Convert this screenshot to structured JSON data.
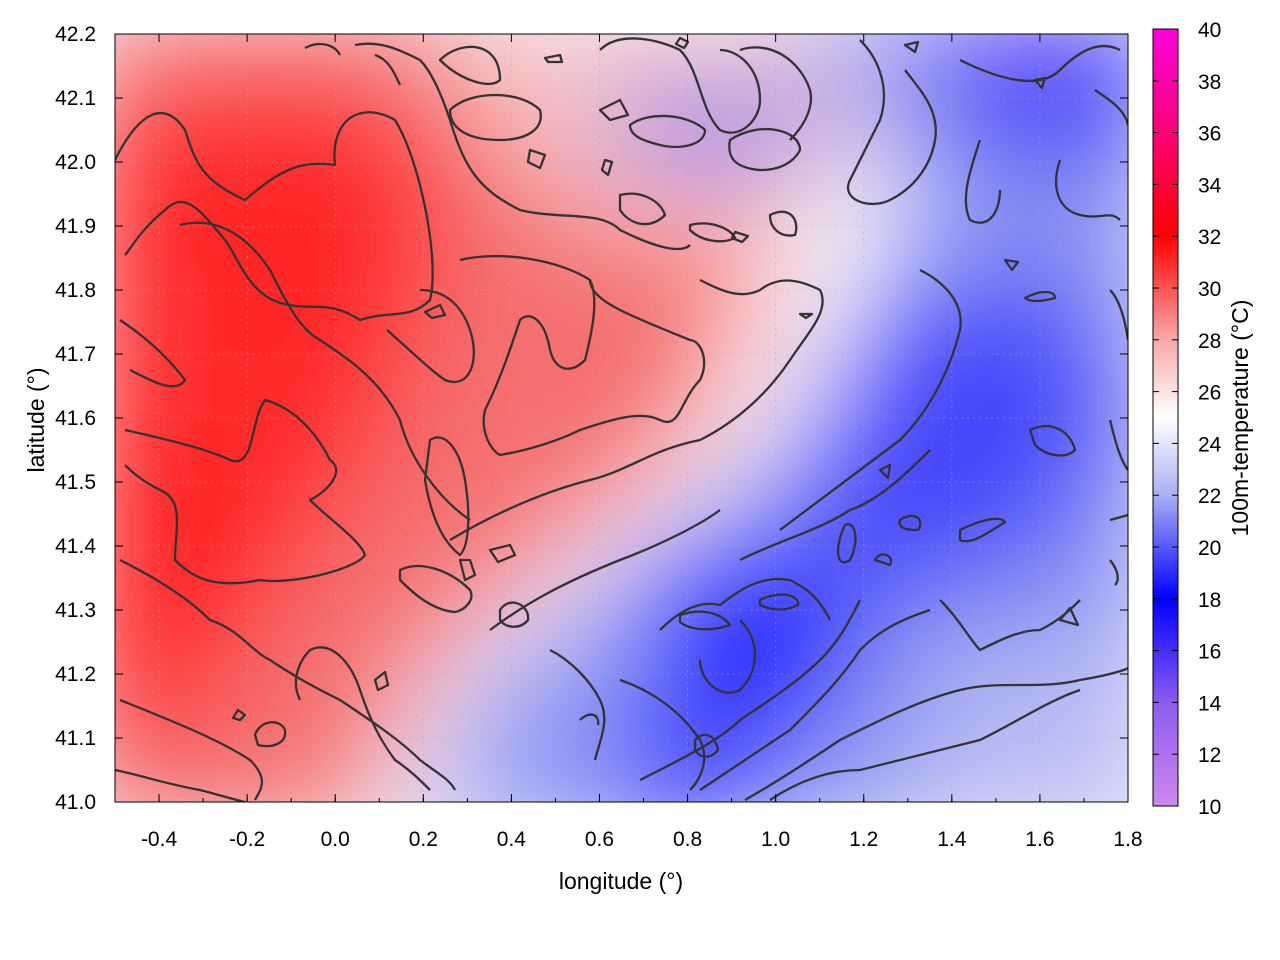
{
  "chart_data": {
    "type": "heatmap",
    "title": "",
    "xlabel": "longitude (°)",
    "ylabel": "latitude (°)",
    "colorbar_label": "100m-temperature (°C)",
    "xlim": [
      -0.5,
      1.8
    ],
    "ylim": [
      41.0,
      42.2
    ],
    "x_ticks": [
      "-0.4",
      "-0.2",
      "0.0",
      "0.2",
      "0.4",
      "0.6",
      "0.8",
      "1.0",
      "1.2",
      "1.4",
      "1.6",
      "1.8"
    ],
    "x_tick_values": [
      -0.4,
      -0.2,
      0.0,
      0.2,
      0.4,
      0.6,
      0.8,
      1.0,
      1.2,
      1.4,
      1.6,
      1.8
    ],
    "y_ticks": [
      "41.0",
      "41.1",
      "41.2",
      "41.3",
      "41.4",
      "41.5",
      "41.6",
      "41.7",
      "41.8",
      "41.9",
      "42.0",
      "42.1",
      "42.2"
    ],
    "y_tick_values": [
      41.0,
      41.1,
      41.2,
      41.3,
      41.4,
      41.5,
      41.6,
      41.7,
      41.8,
      41.9,
      42.0,
      42.1,
      42.2
    ],
    "colorbar_range": [
      10,
      40
    ],
    "colorbar_ticks": [
      "10",
      "12",
      "14",
      "16",
      "18",
      "20",
      "22",
      "24",
      "26",
      "28",
      "30",
      "32",
      "34",
      "36",
      "38",
      "40"
    ],
    "colorbar_tick_values": [
      10,
      12,
      14,
      16,
      18,
      20,
      22,
      24,
      26,
      28,
      30,
      32,
      34,
      36,
      38,
      40
    ],
    "colormap_stops": [
      {
        "value": 10,
        "color": "#cc88ee"
      },
      {
        "value": 14,
        "color": "#8c5cf0"
      },
      {
        "value": 18,
        "color": "#0000ff"
      },
      {
        "value": 22,
        "color": "#aab0f2"
      },
      {
        "value": 25,
        "color": "#ffffff"
      },
      {
        "value": 28,
        "color": "#f7a8a8"
      },
      {
        "value": 32,
        "color": "#ff0000"
      },
      {
        "value": 36,
        "color": "#ff0077"
      },
      {
        "value": 40,
        "color": "#ff00dd"
      }
    ],
    "grid": true,
    "contour_color": "#333333",
    "temperature_field_samples": [
      {
        "lon": -0.4,
        "lat": 41.3,
        "t": 31
      },
      {
        "lon": -0.1,
        "lat": 41.75,
        "t": 31
      },
      {
        "lon": 0.1,
        "lat": 41.8,
        "t": 31
      },
      {
        "lon": 0.4,
        "lat": 42.1,
        "t": 28
      },
      {
        "lon": 0.7,
        "lat": 41.7,
        "t": 27
      },
      {
        "lon": 0.3,
        "lat": 41.3,
        "t": 26
      },
      {
        "lon": 0.5,
        "lat": 41.1,
        "t": 22
      },
      {
        "lon": 0.95,
        "lat": 41.3,
        "t": 18
      },
      {
        "lon": 1.2,
        "lat": 41.9,
        "t": 25
      },
      {
        "lon": 1.45,
        "lat": 41.5,
        "t": 19
      },
      {
        "lon": 1.6,
        "lat": 42.1,
        "t": 17
      },
      {
        "lon": 1.5,
        "lat": 41.1,
        "t": 22
      }
    ]
  }
}
